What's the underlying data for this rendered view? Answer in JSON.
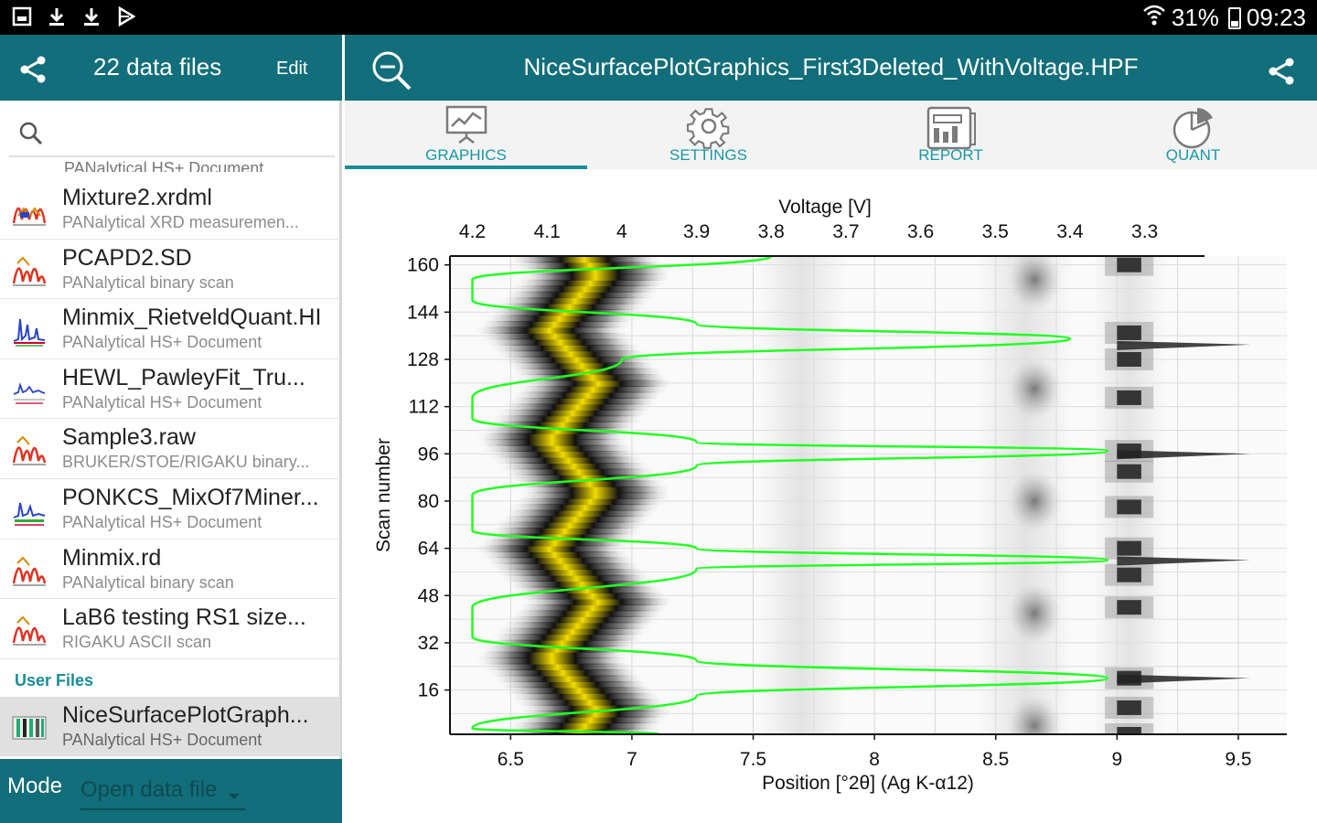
{
  "status": {
    "battery": "31%",
    "time": "09:23"
  },
  "left_panel": {
    "header_title": "22 data files",
    "edit_label": "Edit",
    "cut_item": "PANalytical HS+ Document",
    "files": [
      {
        "name": "Mixture2.xrdml",
        "desc": "PANalytical XRD measuremen...",
        "icon": "xrd-peaks-icon"
      },
      {
        "name": "PCAPD2.SD",
        "desc": "PANalytical binary scan",
        "icon": "scan-peaks-icon"
      },
      {
        "name": "Minmix_RietveldQuant.HI",
        "desc": "PANalytical HS+ Document",
        "icon": "rietveld-plot-icon"
      },
      {
        "name": "HEWL_PawleyFit_Tru...",
        "desc": "PANalytical HS+ Document",
        "icon": "pawley-plot-icon"
      },
      {
        "name": "Sample3.raw",
        "desc": "BRUKER/STOE/RIGAKU binary...",
        "icon": "scan-peaks-icon"
      },
      {
        "name": "PONKCS_MixOf7Miner...",
        "desc": "PANalytical HS+ Document",
        "icon": "ponkcs-plot-icon"
      },
      {
        "name": "Minmix.rd",
        "desc": "PANalytical binary scan",
        "icon": "scan-peaks-icon"
      },
      {
        "name": "LaB6 testing RS1 size...",
        "desc": "RIGAKU ASCII scan",
        "icon": "scan-peaks-icon"
      }
    ],
    "section_label": "User Files",
    "selected_file": {
      "name": "NiceSurfacePlotGraph...",
      "desc": "PANalytical HS+ Document",
      "icon": "surface-plot-icon"
    },
    "mode_label": "Mode",
    "mode_value": "Open data file"
  },
  "right_panel": {
    "header_title": "NiceSurfacePlotGraphics_First3Deleted_WithVoltage.HPF",
    "tabs": [
      {
        "label": "GRAPHICS",
        "icon": "chart-board-icon",
        "active": true
      },
      {
        "label": "SETTINGS",
        "icon": "gear-icon",
        "active": false
      },
      {
        "label": "REPORT",
        "icon": "report-icon",
        "active": false
      },
      {
        "label": "QUANT",
        "icon": "pie-chart-icon",
        "active": false
      }
    ]
  },
  "chart_data": {
    "type": "heatmap",
    "xlabel": "Position [°2θ] (Ag K-α12)",
    "ylabel": "Scan number",
    "top_xlabel": "Voltage [V]",
    "x_ticks": [
      6.5,
      7,
      7.5,
      8,
      8.5,
      9,
      9.5
    ],
    "y_ticks": [
      16,
      32,
      48,
      64,
      80,
      96,
      112,
      128,
      144,
      160
    ],
    "top_ticks": [
      "4.2",
      "4.1",
      "4",
      "3.9",
      "3.8",
      "3.7",
      "3.6",
      "3.5",
      "3.4",
      "3.3"
    ],
    "xlim": [
      6.25,
      9.7
    ],
    "ylim": [
      1,
      163
    ],
    "grid": true,
    "colors": {
      "curve": "#22ff22",
      "peak_yellow": "#f2dc00",
      "peak_black": "#111111"
    },
    "voltage_curve": [
      {
        "voltage": 3.8,
        "scan": 163
      },
      {
        "voltage": 4.2,
        "scan": 155
      },
      {
        "voltage": 4.2,
        "scan": 148
      },
      {
        "voltage": 3.9,
        "scan": 140
      },
      {
        "voltage": 3.4,
        "scan": 135
      },
      {
        "voltage": 4.0,
        "scan": 128
      },
      {
        "voltage": 4.2,
        "scan": 115
      },
      {
        "voltage": 4.2,
        "scan": 108
      },
      {
        "voltage": 3.9,
        "scan": 100
      },
      {
        "voltage": 3.35,
        "scan": 97
      },
      {
        "voltage": 3.9,
        "scan": 92
      },
      {
        "voltage": 4.2,
        "scan": 82
      },
      {
        "voltage": 4.2,
        "scan": 70
      },
      {
        "voltage": 3.9,
        "scan": 64
      },
      {
        "voltage": 3.35,
        "scan": 60
      },
      {
        "voltage": 3.9,
        "scan": 57
      },
      {
        "voltage": 4.2,
        "scan": 44
      },
      {
        "voltage": 4.2,
        "scan": 34
      },
      {
        "voltage": 3.9,
        "scan": 26
      },
      {
        "voltage": 3.35,
        "scan": 20
      },
      {
        "voltage": 3.9,
        "scan": 14
      },
      {
        "voltage": 4.2,
        "scan": 3
      },
      {
        "voltage": 3.95,
        "scan": 1
      }
    ]
  }
}
